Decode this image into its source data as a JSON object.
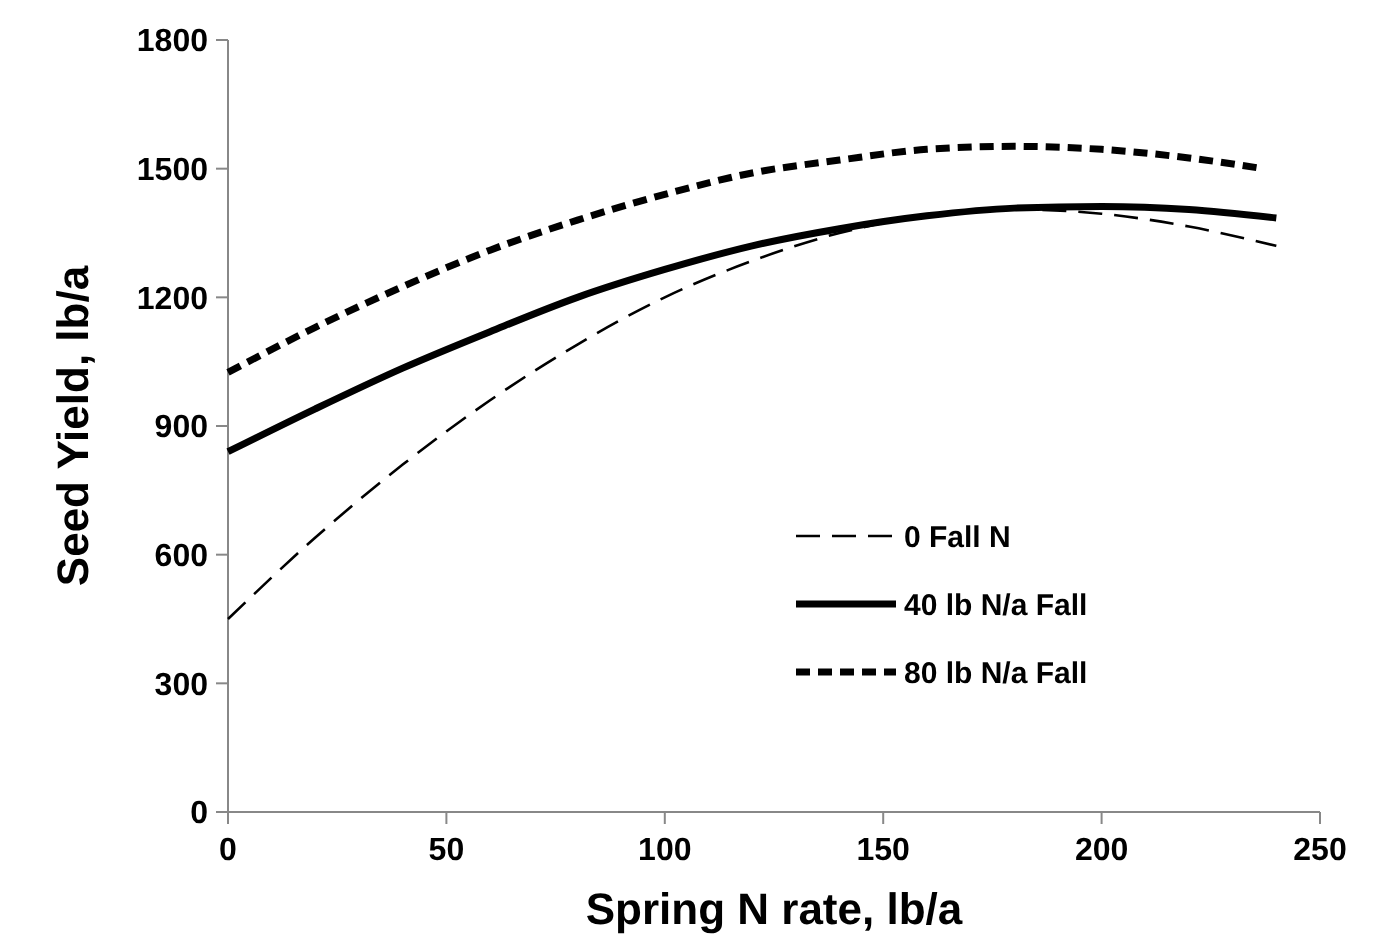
{
  "chart_data": {
    "type": "line",
    "xlabel": "Spring N rate, lb/a",
    "ylabel": "Seed Yield, lb/a",
    "xlim": [
      0,
      250
    ],
    "xticks": [
      0,
      50,
      100,
      150,
      200,
      250
    ],
    "ylim": [
      0,
      1800
    ],
    "yticks": [
      0,
      300,
      600,
      900,
      1200,
      1500,
      1800
    ],
    "grid": false,
    "legend": "right",
    "marker": "none",
    "series": [
      {
        "name": "0 Fall N",
        "color": "#000000",
        "line_style": "dashed",
        "x": [
          0,
          20,
          40,
          60,
          80,
          100,
          120,
          140,
          160,
          180,
          200,
          220,
          240
        ],
        "values": [
          450,
          640,
          810,
          960,
          1090,
          1200,
          1285,
          1350,
          1390,
          1405,
          1395,
          1365,
          1320
        ]
      },
      {
        "name": "40 lb N/a Fall",
        "color": "#000000",
        "line_style": "solid",
        "x": [
          0,
          20,
          40,
          60,
          80,
          100,
          120,
          140,
          160,
          180,
          200,
          220,
          240
        ],
        "values": [
          840,
          940,
          1035,
          1120,
          1200,
          1265,
          1320,
          1360,
          1390,
          1408,
          1412,
          1405,
          1385
        ]
      },
      {
        "name": "80 lb N/a Fall",
        "color": "#000000",
        "line_style": "dotted",
        "x": [
          0,
          20,
          40,
          60,
          80,
          100,
          120,
          140,
          160,
          180,
          200,
          220,
          237
        ],
        "values": [
          1025,
          1130,
          1225,
          1310,
          1380,
          1440,
          1490,
          1520,
          1545,
          1552,
          1545,
          1525,
          1500
        ]
      }
    ]
  }
}
